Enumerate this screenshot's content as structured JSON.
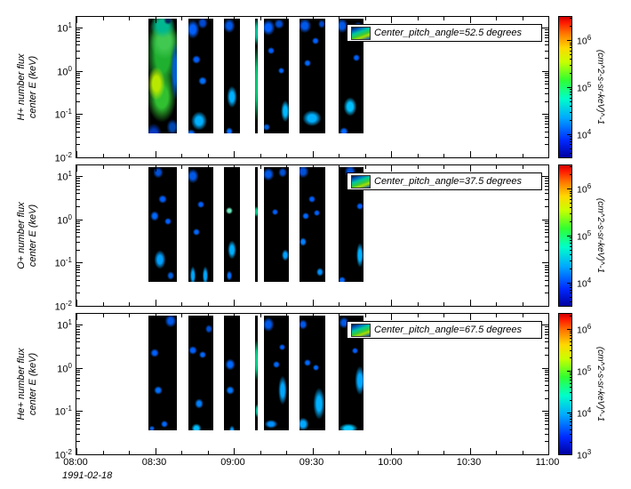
{
  "chart_data": {
    "type": "heatmap",
    "title": "",
    "x_axis": {
      "date": "1991-02-18",
      "range_hours": [
        8,
        11
      ],
      "ticks": [
        "08:00",
        "08:30",
        "09:00",
        "09:30",
        "10:00",
        "10:30",
        "11:00"
      ],
      "minor_tick_minutes": 10
    },
    "panels": [
      {
        "ylabel_line1": "H+ number flux",
        "ylabel_line2": "center E (keV)",
        "legend": "Center_pitch_angle=52.5 degrees",
        "y_log_range": [
          -2,
          1.25
        ],
        "y_tick_exponents": [
          1,
          0,
          -1,
          -2
        ],
        "segment_E_range": [
          0.036,
          16
        ],
        "colorbar": {
          "label": "(cm^2-s-sr-keV)^-1",
          "log_range": [
            3.5,
            6.5
          ],
          "tick_exponents": [
            6,
            5,
            4
          ]
        },
        "segments": [
          {
            "t0": 8.46,
            "t1": 8.64,
            "blobs": [
              [
                8.55,
                2.5,
                46,
                120,
                "#20b030"
              ],
              [
                8.54,
                0.25,
                40,
                70,
                "#30c030"
              ],
              [
                8.56,
                5.0,
                40,
                50,
                "#40c850"
              ],
              [
                8.51,
                0.5,
                24,
                46,
                "#b8e800"
              ],
              [
                8.55,
                11,
                34,
                34,
                "#00b890"
              ],
              [
                8.58,
                14.5,
                12,
                12,
                "#002858"
              ],
              [
                8.49,
                0.035,
                22,
                30,
                "#0038c0"
              ],
              [
                8.61,
                0.05,
                16,
                22,
                "#0048b0"
              ],
              [
                8.63,
                1.0,
                12,
                80,
                "#0060d0"
              ]
            ]
          },
          {
            "t0": 8.71,
            "t1": 8.87,
            "blobs": [
              [
                8.74,
                9,
                18,
                26,
                "#0060ff"
              ],
              [
                8.8,
                13,
                14,
                16,
                "#0048d0"
              ],
              [
                8.76,
                1.8,
                12,
                12,
                "#0060ff"
              ],
              [
                8.8,
                0.6,
                12,
                12,
                "#0070ff"
              ],
              [
                8.78,
                0.07,
                22,
                26,
                "#00b0ff"
              ],
              [
                8.73,
                0.035,
                14,
                14,
                "#0070ff"
              ]
            ]
          },
          {
            "t0": 8.94,
            "t1": 9.04,
            "blobs": [
              [
                8.97,
                11,
                16,
                20,
                "#0058e8"
              ],
              [
                8.99,
                0.25,
                14,
                30,
                "#00b0ff"
              ],
              [
                8.97,
                0.04,
                10,
                12,
                "#0070ff"
              ]
            ]
          },
          {
            "t0": 9.135,
            "t1": 9.155,
            "blobs": [
              [
                9.145,
                0.5,
                5,
                110,
                "#00d080"
              ],
              [
                9.145,
                8,
                5,
                40,
                "#00c8a0"
              ]
            ]
          },
          {
            "t0": 9.19,
            "t1": 9.35,
            "blobs": [
              [
                9.22,
                10,
                18,
                22,
                "#0060ff"
              ],
              [
                9.29,
                12,
                14,
                14,
                "#0050d8"
              ],
              [
                9.24,
                3,
                10,
                10,
                "#0060ff"
              ],
              [
                9.3,
                1,
                9,
                9,
                "#0068ff"
              ],
              [
                9.33,
                0.12,
                12,
                30,
                "#00b8ff"
              ],
              [
                9.21,
                0.05,
                10,
                10,
                "#0060e0"
              ]
            ]
          },
          {
            "t0": 9.42,
            "t1": 9.58,
            "blobs": [
              [
                9.45,
                11,
                18,
                20,
                "#0058e8"
              ],
              [
                9.56,
                12,
                10,
                12,
                "#0048c8"
              ],
              [
                9.52,
                5,
                10,
                10,
                "#0060ff"
              ],
              [
                9.47,
                1.5,
                10,
                10,
                "#0068ff"
              ],
              [
                9.5,
                0.08,
                26,
                22,
                "#00b0ff"
              ]
            ]
          },
          {
            "t0": 9.665,
            "t1": 9.825,
            "blobs": [
              [
                9.69,
                11,
                16,
                20,
                "#0058e8"
              ],
              [
                9.79,
                10,
                14,
                16,
                "#0050d8"
              ],
              [
                9.78,
                2,
                10,
                10,
                "#0060ff"
              ],
              [
                9.74,
                0.15,
                18,
                26,
                "#00c0ff"
              ],
              [
                9.7,
                0.04,
                12,
                12,
                "#0068ff"
              ]
            ]
          }
        ]
      },
      {
        "ylabel_line1": "O+ number flux",
        "ylabel_line2": "center E (keV)",
        "legend": "Center_pitch_angle=37.5 degrees",
        "y_log_range": [
          -2,
          1.25
        ],
        "y_tick_exponents": [
          1,
          0,
          -1,
          -2
        ],
        "segment_E_range": [
          0.036,
          16
        ],
        "colorbar": {
          "label": "(cm^2-s-sr-keV)^-1",
          "log_range": [
            3.5,
            6.5
          ],
          "tick_exponents": [
            6,
            5,
            4
          ]
        },
        "segments": [
          {
            "t0": 8.46,
            "t1": 8.64,
            "blobs": [
              [
                8.52,
                12,
                14,
                16,
                "#0050d8"
              ],
              [
                8.55,
                3,
                12,
                12,
                "#0060ff"
              ],
              [
                8.5,
                1.2,
                12,
                14,
                "#0068ff"
              ],
              [
                8.58,
                0.9,
                10,
                10,
                "#0060ff"
              ],
              [
                8.53,
                0.12,
                16,
                26,
                "#00a0ff"
              ],
              [
                8.6,
                0.05,
                10,
                12,
                "#0060e0"
              ]
            ]
          },
          {
            "t0": 8.71,
            "t1": 8.87,
            "blobs": [
              [
                8.74,
                10,
                16,
                20,
                "#0058e8"
              ],
              [
                8.79,
                2.2,
                10,
                10,
                "#0060ff"
              ],
              [
                8.76,
                0.5,
                10,
                10,
                "#0068ff"
              ],
              [
                8.74,
                0.05,
                8,
                26,
                "#00a8ff"
              ],
              [
                8.82,
                0.05,
                8,
                26,
                "#00a8ff"
              ]
            ]
          },
          {
            "t0": 8.94,
            "t1": 9.04,
            "blobs": [
              [
                8.97,
                1.6,
                10,
                10,
                "#70e8c0"
              ],
              [
                8.99,
                0.2,
                12,
                26,
                "#00b0ff"
              ],
              [
                8.97,
                0.05,
                8,
                14,
                "#0070ff"
              ]
            ]
          },
          {
            "t0": 9.135,
            "t1": 9.155,
            "blobs": [
              [
                9.145,
                1.5,
                5,
                16,
                "#00d090"
              ]
            ]
          },
          {
            "t0": 9.19,
            "t1": 9.35,
            "blobs": [
              [
                9.22,
                11,
                16,
                18,
                "#0058e8"
              ],
              [
                9.31,
                12,
                12,
                14,
                "#0050d8"
              ],
              [
                9.26,
                1.5,
                9,
                9,
                "#0060ff"
              ],
              [
                9.33,
                0.15,
                10,
                16,
                "#00a0ff"
              ]
            ]
          },
          {
            "t0": 9.42,
            "t1": 9.58,
            "blobs": [
              [
                9.44,
                13,
                16,
                18,
                "#0050d8"
              ],
              [
                9.5,
                3,
                10,
                10,
                "#0060ff"
              ],
              [
                9.46,
                1.2,
                10,
                10,
                "#0068ff"
              ],
              [
                9.53,
                1.4,
                9,
                9,
                "#0060ff"
              ],
              [
                9.44,
                0.3,
                10,
                12,
                "#0080ff"
              ],
              [
                9.55,
                0.06,
                10,
                12,
                "#0090ff"
              ]
            ]
          },
          {
            "t0": 9.665,
            "t1": 9.825,
            "blobs": [
              [
                9.74,
                13,
                16,
                18,
                "#0050d8"
              ],
              [
                9.8,
                2,
                10,
                10,
                "#0060ff"
              ],
              [
                9.8,
                0.15,
                10,
                34,
                "#00b0ff"
              ],
              [
                9.69,
                0.04,
                10,
                10,
                "#0068ff"
              ]
            ]
          }
        ]
      },
      {
        "ylabel_line1": "He+ number flux",
        "ylabel_line2": "center E (keV)",
        "legend": "Center_pitch_angle=67.5 degrees",
        "y_log_range": [
          -2,
          1.25
        ],
        "y_tick_exponents": [
          1,
          0,
          -1,
          -2
        ],
        "segment_E_range": [
          0.036,
          16
        ],
        "colorbar": {
          "label": "(cm^2-s-sr-keV)^-1",
          "log_range": [
            3.0,
            6.35
          ],
          "tick_exponents": [
            6,
            5,
            4,
            3
          ]
        },
        "segments": [
          {
            "t0": 8.46,
            "t1": 8.64,
            "blobs": [
              [
                8.6,
                12,
                16,
                18,
                "#0058e8"
              ],
              [
                8.5,
                2.2,
                12,
                12,
                "#0060ff"
              ],
              [
                8.52,
                0.3,
                12,
                12,
                "#0070ff"
              ],
              [
                8.56,
                0.05,
                10,
                10,
                "#0068ff"
              ],
              [
                8.48,
                0.04,
                8,
                8,
                "#0060e0"
              ]
            ]
          },
          {
            "t0": 8.71,
            "t1": 8.87,
            "blobs": [
              [
                8.84,
                8,
                10,
                12,
                "#0050d8"
              ],
              [
                8.74,
                2.5,
                12,
                12,
                "#0060ff"
              ],
              [
                8.8,
                2.0,
                10,
                10,
                "#0068ff"
              ],
              [
                8.78,
                0.15,
                12,
                14,
                "#0080ff"
              ],
              [
                8.76,
                0.04,
                14,
                14,
                "#00c0ff"
              ]
            ]
          },
          {
            "t0": 8.94,
            "t1": 9.04,
            "blobs": [
              [
                8.98,
                1.2,
                14,
                16,
                "#0068ff"
              ],
              [
                8.98,
                0.3,
                12,
                12,
                "#0078ff"
              ],
              [
                8.99,
                0.035,
                8,
                16,
                "#00a0ff"
              ]
            ]
          },
          {
            "t0": 9.135,
            "t1": 9.155,
            "blobs": [
              [
                9.145,
                1.5,
                5,
                60,
                "#00d890"
              ],
              [
                9.145,
                0.1,
                4,
                20,
                "#00c0a0"
              ]
            ]
          },
          {
            "t0": 9.19,
            "t1": 9.35,
            "blobs": [
              [
                9.22,
                10,
                16,
                20,
                "#0058e8"
              ],
              [
                9.31,
                3,
                9,
                9,
                "#0060ff"
              ],
              [
                9.27,
                1.2,
                10,
                10,
                "#0068ff"
              ],
              [
                9.31,
                0.3,
                12,
                40,
                "#00a8ff"
              ],
              [
                9.24,
                0.05,
                18,
                12,
                "#0090ff"
              ]
            ]
          },
          {
            "t0": 9.42,
            "t1": 9.58,
            "blobs": [
              [
                9.44,
                10,
                12,
                14,
                "#0058e8"
              ],
              [
                9.47,
                1.3,
                10,
                10,
                "#0068ff"
              ],
              [
                9.52,
                1.0,
                9,
                9,
                "#0068ff"
              ],
              [
                9.54,
                0.15,
                16,
                44,
                "#00b0ff"
              ],
              [
                9.44,
                0.05,
                16,
                18,
                "#00a8ff"
              ]
            ]
          },
          {
            "t0": 9.665,
            "t1": 9.825,
            "blobs": [
              [
                9.7,
                11,
                14,
                16,
                "#0058e8"
              ],
              [
                9.78,
                9,
                12,
                14,
                "#0050d8"
              ],
              [
                9.77,
                2.5,
                9,
                9,
                "#0060ff"
              ],
              [
                9.8,
                0.5,
                14,
                40,
                "#00a8ff"
              ],
              [
                9.73,
                0.04,
                26,
                14,
                "#00c8ff"
              ]
            ]
          }
        ]
      }
    ]
  }
}
